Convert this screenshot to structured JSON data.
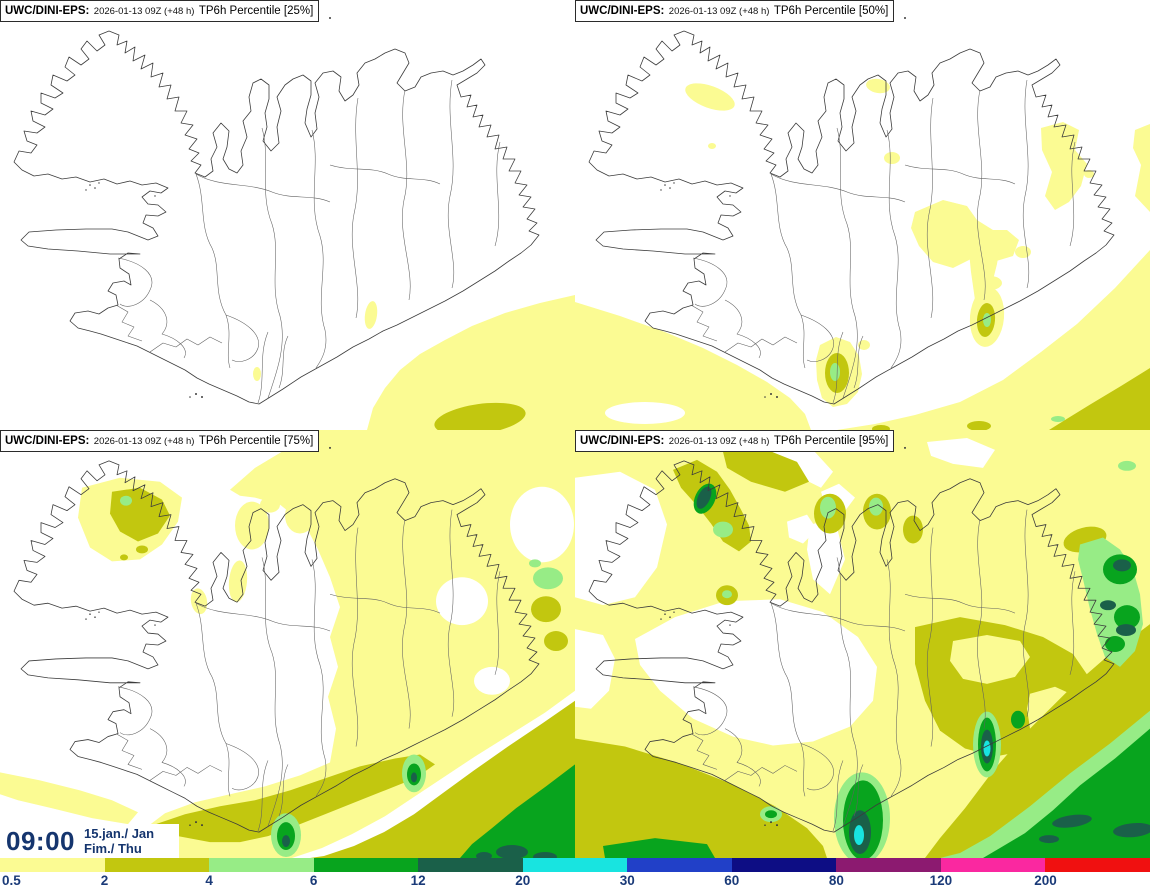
{
  "product": {
    "model_label": "UWC/DINI-EPS:",
    "run": "2026-01-13 09Z (+48 h)",
    "field": "TP6h Percentile"
  },
  "clock": {
    "time": "09:00",
    "date": "15.jan./ Jan",
    "day": "Fim./ Thu",
    "text_color": "#15356E"
  },
  "colorbar": {
    "label_color": "#1A3A78",
    "segments": [
      {
        "label": "0.5",
        "color": "#FBFB93"
      },
      {
        "label": "2",
        "color": "#C2C70F"
      },
      {
        "label": "4",
        "color": "#97EC86"
      },
      {
        "label": "6",
        "color": "#08A41E"
      },
      {
        "label": "12",
        "color": "#1A6049"
      },
      {
        "label": "20",
        "color": "#18E4E0"
      },
      {
        "label": "30",
        "color": "#2140C8"
      },
      {
        "label": "60",
        "color": "#0D0D84"
      },
      {
        "label": "80",
        "color": "#8C1A70"
      },
      {
        "label": "120",
        "color": "#FA28A0"
      },
      {
        "label": "200",
        "color": "#F01010"
      }
    ]
  },
  "levels": {
    "W": "#FFFFFF",
    "L1": "#FBFB93",
    "L2": "#C2C70F",
    "L3": "#97EC86",
    "L4": "#08A41E",
    "L5": "#1A6049",
    "L6": "#18E4E0"
  },
  "panels": [
    {
      "percentile_label": "[25%]",
      "regions": [
        {
          "c": "L1",
          "p": "575,295 540,303 505,313 472,326 445,340 420,354 400,370 385,388 373,408 367,430 575,430"
        },
        {
          "c": "L2",
          "e": [
            480,
            419,
            46,
            15,
            -8
          ]
        },
        {
          "c": "L1",
          "e": [
            371,
            315,
            6,
            14,
            8
          ]
        },
        {
          "c": "L1",
          "e": [
            257,
            374,
            4,
            7,
            0
          ]
        }
      ]
    },
    {
      "percentile_label": "[50%]",
      "regions": [
        {
          "c": "L1",
          "e": [
            135,
            97,
            26,
            11,
            20
          ]
        },
        {
          "c": "L1",
          "e": [
            137,
            146,
            4,
            3,
            0
          ]
        },
        {
          "c": "L1",
          "e": [
            303,
            86,
            12,
            7,
            10
          ]
        },
        {
          "c": "L1",
          "e": [
            317,
            158,
            8,
            6,
            0
          ]
        },
        {
          "c": "L1",
          "p": "466,128 488,122 504,130 500,150 512,164 506,186 494,202 480,210 470,196 477,172 467,150"
        },
        {
          "c": "L1",
          "e": [
            514,
            174,
            5,
            4,
            0
          ]
        },
        {
          "c": "L1",
          "p": "560,130 575,124 575,212 560,196 566,165 558,148"
        },
        {
          "c": "L1",
          "p": "340,212 368,200 392,206 402,220 418,230 432,230 444,240 438,256 418,262 398,258 378,268 358,262 344,246 336,228"
        },
        {
          "c": "L1",
          "e": [
            415,
            283,
            12,
            7,
            0
          ]
        },
        {
          "c": "L1",
          "e": [
            448,
            252,
            8,
            6,
            0
          ]
        },
        {
          "c": "L1",
          "p": "398,238 414,230 426,240 422,264 416,288 410,306 400,300 396,272 394,252"
        },
        {
          "c": "L1",
          "p": "575,250 540,288 502,324 466,352 428,380 385,402 340,415 300,424 262,430 575,430"
        },
        {
          "c": "L1",
          "p": "0,302 45,316 90,332 128,348 162,365 192,382 215,398 230,414 236,430 0,430"
        },
        {
          "c": "W",
          "e": [
            70,
            413,
            40,
            11,
            0
          ]
        },
        {
          "c": "L1",
          "p": "245,345 261,337 275,342 284,356 287,374 283,392 272,404 258,407 247,398 242,380 241,360"
        },
        {
          "c": "L1",
          "e": [
            289,
            345,
            6,
            5,
            0
          ]
        },
        {
          "c": "L1",
          "e": [
            412,
            317,
            17,
            30,
            5
          ]
        },
        {
          "c": "L2",
          "e": [
            262,
            373,
            12,
            20,
            0
          ]
        },
        {
          "c": "L2",
          "e": [
            411,
            320,
            9,
            17,
            5
          ]
        },
        {
          "c": "L2",
          "p": "575,368 546,386 516,404 490,420 474,430 575,430"
        },
        {
          "c": "L2",
          "e": [
            404,
            426,
            12,
            5,
            0
          ]
        },
        {
          "c": "L2",
          "e": [
            306,
            429,
            9,
            4,
            0
          ]
        },
        {
          "c": "L3",
          "e": [
            260,
            372,
            5,
            9,
            0
          ]
        },
        {
          "c": "L3",
          "e": [
            412,
            320,
            4,
            7,
            0
          ]
        },
        {
          "c": "L3",
          "e": [
            483,
            419,
            7,
            3,
            0
          ]
        }
      ]
    },
    {
      "percentile_label": "[75%]",
      "regions": [
        {
          "c": "L1",
          "p": "82,58 120,48 160,52 182,68 178,92 162,115 140,130 112,132 90,118 78,88"
        },
        {
          "c": "L1",
          "p": "230,60 255,38 285,20 300,0 575,0 575,262 545,284 510,306 475,328 445,348 415,368 385,388 352,406 322,420 292,430 148,430 142,415 148,398 165,385 195,374 230,366 265,358 300,347 330,334 336,300 328,268 338,238 330,208 340,178 330,148 318,120 305,95 280,75 255,68 240,66"
        },
        {
          "c": "W",
          "e": [
            542,
            95,
            32,
            38,
            0
          ]
        },
        {
          "c": "W",
          "e": [
            462,
            172,
            26,
            24,
            0
          ]
        },
        {
          "c": "W",
          "e": [
            492,
            252,
            18,
            14,
            0
          ]
        },
        {
          "c": "L1",
          "e": [
            252,
            96,
            17,
            24,
            0
          ]
        },
        {
          "c": "L1",
          "e": [
            300,
            86,
            15,
            18,
            0
          ]
        },
        {
          "c": "L1",
          "e": [
            270,
            75,
            10,
            8,
            0
          ]
        },
        {
          "c": "L1",
          "p": "0,344 40,352 80,362 112,372 138,384 128,396 92,390 52,380 18,372 0,366"
        },
        {
          "c": "L1",
          "e": [
            238,
            152,
            9,
            21,
            5
          ]
        },
        {
          "c": "L1",
          "e": [
            199,
            172,
            8,
            13,
            -10
          ]
        },
        {
          "c": "L2",
          "p": "112,62 140,58 162,70 170,86 158,104 138,112 120,102 110,84"
        },
        {
          "c": "L2",
          "e": [
            142,
            120,
            6,
            4,
            0
          ]
        },
        {
          "c": "L2",
          "e": [
            124,
            128,
            4,
            3,
            0
          ]
        },
        {
          "c": "L2",
          "p": "150,398 185,386 220,378 255,372 290,362 325,350 360,338 395,330 420,326 435,336 415,350 385,362 355,374 325,386 295,398 268,408 240,414 210,414 178,408 158,404"
        },
        {
          "c": "L2",
          "e": [
            370,
            428,
            30,
            6,
            0
          ]
        },
        {
          "c": "L2",
          "p": "575,272 542,295 508,318 474,342 444,364 414,386 384,404 354,418 324,428 310,430 575,430"
        },
        {
          "c": "L2",
          "e": [
            546,
            180,
            15,
            13,
            0
          ]
        },
        {
          "c": "L2",
          "e": [
            556,
            212,
            12,
            10,
            0
          ]
        },
        {
          "c": "L3",
          "e": [
            126,
            71,
            6,
            5,
            0
          ]
        },
        {
          "c": "L3",
          "e": [
            548,
            149,
            15,
            11,
            0
          ]
        },
        {
          "c": "L3",
          "e": [
            535,
            134,
            6,
            4,
            0
          ]
        },
        {
          "c": "L3",
          "e": [
            286,
            407,
            15,
            22,
            0
          ]
        },
        {
          "c": "L3",
          "e": [
            414,
            345,
            12,
            19,
            0
          ]
        },
        {
          "c": "L4",
          "p": "575,336 546,358 516,380 492,400 472,416 460,430 575,430"
        },
        {
          "c": "L4",
          "e": [
            286,
            408,
            9,
            14,
            0
          ]
        },
        {
          "c": "L4",
          "e": [
            414,
            346,
            7,
            11,
            0
          ]
        },
        {
          "c": "L5",
          "e": [
            286,
            413,
            4,
            6,
            0
          ]
        },
        {
          "c": "L5",
          "e": [
            414,
            349,
            3,
            5,
            0
          ]
        },
        {
          "c": "L5",
          "e": [
            512,
            424,
            16,
            7,
            0
          ]
        },
        {
          "c": "L5",
          "e": [
            545,
            429,
            12,
            5,
            0
          ]
        },
        {
          "c": "L5",
          "e": [
            484,
            428,
            8,
            4,
            0
          ]
        }
      ]
    },
    {
      "percentile_label": "[95%]",
      "regions": [
        {
          "c": "L1",
          "p": "0,0 575,0 575,430 0,430"
        },
        {
          "c": "W",
          "p": "60,210 100,188 150,172 205,170 248,183 283,208 302,238 298,272 275,298 238,313 198,317 158,308 118,290 85,262 65,236"
        },
        {
          "c": "W",
          "p": "0,48 45,42 80,60 92,95 82,138 60,168 28,176 0,168"
        },
        {
          "c": "W",
          "p": "182,12 212,6 238,20 258,42 246,58 222,46 200,32 186,24"
        },
        {
          "c": "W",
          "p": "246,62 264,54 280,68 268,84 250,75"
        },
        {
          "c": "W",
          "p": "212,92 232,85 242,100 228,114 214,108"
        },
        {
          "c": "W",
          "p": "0,200 28,206 40,230 34,262 16,280 0,278"
        },
        {
          "c": "W",
          "p": "352,12 392,8 420,20 408,38 378,34 356,26"
        },
        {
          "c": "W",
          "p": "235,95 260,90 270,130 255,165 238,150 232,120"
        },
        {
          "c": "L2",
          "p": "98,40 122,30 142,42 155,60 166,80 174,96 176,112 164,122 148,112 136,94 122,76 106,58"
        },
        {
          "c": "L2",
          "p": "148,22 182,16 222,32 234,52 210,62 176,52 152,38"
        },
        {
          "c": "L2",
          "e": [
            255,
            84,
            16,
            20,
            0
          ]
        },
        {
          "c": "L2",
          "e": [
            302,
            82,
            14,
            18,
            0
          ]
        },
        {
          "c": "L2",
          "e": [
            338,
            100,
            10,
            14,
            0
          ]
        },
        {
          "c": "L2",
          "e": [
            152,
            166,
            11,
            10,
            0
          ]
        },
        {
          "c": "L2",
          "p": "340,198 385,188 430,196 468,208 498,225 515,250 505,285 482,308 452,322 420,328 390,320 365,302 350,272 340,235"
        },
        {
          "c": "L1",
          "p": "378,212 412,206 445,212 455,228 440,248 412,255 388,250 375,232"
        },
        {
          "c": "L1",
          "p": "455,265 480,258 502,268 508,290 495,315 478,330 462,322 455,300 452,280"
        },
        {
          "c": "L2",
          "p": "575,195 535,225 495,260 455,300 420,340 390,380 365,410 350,430 575,430"
        },
        {
          "c": "L2",
          "p": "0,310 50,318 105,335 155,355 200,378 232,400 248,418 252,430 0,430"
        },
        {
          "c": "L2",
          "e": [
            510,
            110,
            22,
            12,
            -15
          ]
        },
        {
          "c": "L3",
          "p": "575,282 535,315 495,345 455,378 415,408 385,425 365,430 575,430"
        },
        {
          "c": "L3",
          "e": [
            148,
            100,
            10,
            8,
            0
          ]
        },
        {
          "c": "L3",
          "e": [
            152,
            165,
            5,
            4,
            0
          ]
        },
        {
          "c": "L3",
          "e": [
            253,
            78,
            8,
            11,
            0
          ]
        },
        {
          "c": "L3",
          "e": [
            301,
            77,
            7,
            9,
            0
          ]
        },
        {
          "c": "L3",
          "e": [
            552,
            36,
            9,
            5,
            0
          ]
        },
        {
          "c": "L3",
          "p": "505,115 528,108 545,120 558,140 565,165 568,195 560,222 545,238 530,228 522,205 515,180 508,150 503,130"
        },
        {
          "c": "L3",
          "e": [
            287,
            390,
            28,
            46,
            0
          ]
        },
        {
          "c": "L3",
          "e": [
            412,
            316,
            14,
            33,
            0
          ]
        },
        {
          "c": "L3",
          "e": [
            196,
            386,
            11,
            8,
            0
          ]
        },
        {
          "c": "L4",
          "p": "575,300 540,330 505,357 478,382 450,405 425,420 408,430 575,430"
        },
        {
          "c": "L4",
          "e": [
            288,
            392,
            20,
            40,
            0
          ]
        },
        {
          "c": "L4",
          "e": [
            412,
            316,
            9,
            27,
            0
          ]
        },
        {
          "c": "L4",
          "e": [
            545,
            140,
            17,
            15,
            0
          ]
        },
        {
          "c": "L4",
          "e": [
            552,
            188,
            13,
            12,
            0
          ]
        },
        {
          "c": "L4",
          "e": [
            540,
            215,
            10,
            8,
            0
          ]
        },
        {
          "c": "L4",
          "e": [
            130,
            69,
            10,
            16,
            25
          ]
        },
        {
          "c": "L4",
          "e": [
            443,
            291,
            7,
            9,
            0
          ]
        },
        {
          "c": "L4",
          "e": [
            196,
            386,
            6,
            4,
            0
          ]
        },
        {
          "c": "L4",
          "p": "28,418 80,410 132,416 140,430 30,430"
        },
        {
          "c": "L5",
          "e": [
            285,
            404,
            11,
            22,
            0
          ]
        },
        {
          "c": "L5",
          "e": [
            412,
            318,
            6,
            17,
            0
          ]
        },
        {
          "c": "L5",
          "e": [
            497,
            393,
            20,
            6,
            -8
          ]
        },
        {
          "c": "L5",
          "e": [
            558,
            402,
            20,
            7,
            -5
          ]
        },
        {
          "c": "L5",
          "e": [
            474,
            411,
            10,
            4,
            0
          ]
        },
        {
          "c": "L5",
          "e": [
            547,
            136,
            9,
            6,
            0
          ]
        },
        {
          "c": "L5",
          "e": [
            533,
            176,
            8,
            5,
            0
          ]
        },
        {
          "c": "L5",
          "e": [
            551,
            201,
            10,
            6,
            0
          ]
        },
        {
          "c": "L5",
          "e": [
            129,
            68,
            6,
            12,
            25
          ]
        },
        {
          "c": "L6",
          "e": [
            284,
            407,
            5,
            10,
            0
          ]
        },
        {
          "c": "L6",
          "e": [
            412,
            320,
            3.5,
            8,
            0
          ]
        }
      ]
    }
  ]
}
